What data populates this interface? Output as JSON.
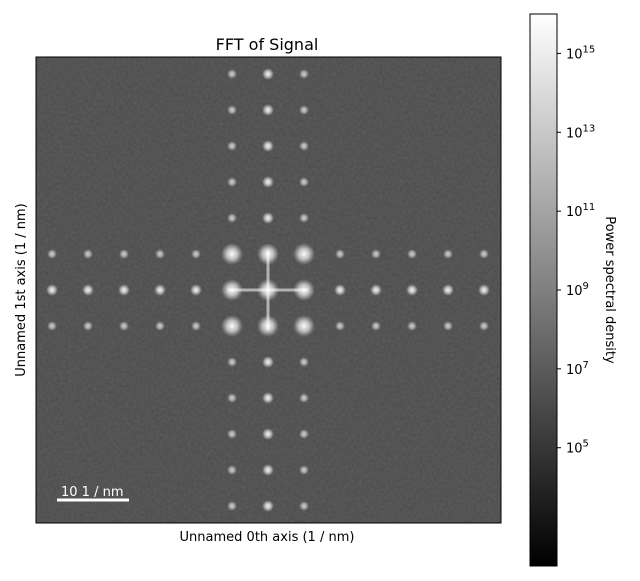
{
  "chart_data": {
    "type": "heatmap",
    "title": "FFT of  Signal",
    "xlabel": "Unnamed 0th axis (1 / nm)",
    "ylabel": "Unnamed 1st axis (1 / nm)",
    "colormap": "gray",
    "colorbar": {
      "label": "Power spectral density",
      "scale": "log",
      "range": [
        100,
        1e+16
      ],
      "ticks": [
        {
          "value": 100000.0,
          "label": "10",
          "exp": "5"
        },
        {
          "value": 10000000.0,
          "label": "10",
          "exp": "7"
        },
        {
          "value": 1000000000.0,
          "label": "10",
          "exp": "9"
        },
        {
          "value": 100000000000.0,
          "label": "10",
          "exp": "11"
        },
        {
          "value": 10000000000000.0,
          "label": "10",
          "exp": "13"
        },
        {
          "value": 1000000000000000.0,
          "label": "10",
          "exp": "15"
        }
      ]
    },
    "scalebar": {
      "value": "10",
      "unit": "1 / nm",
      "label": "10 1 / nm"
    },
    "grid": false
  }
}
